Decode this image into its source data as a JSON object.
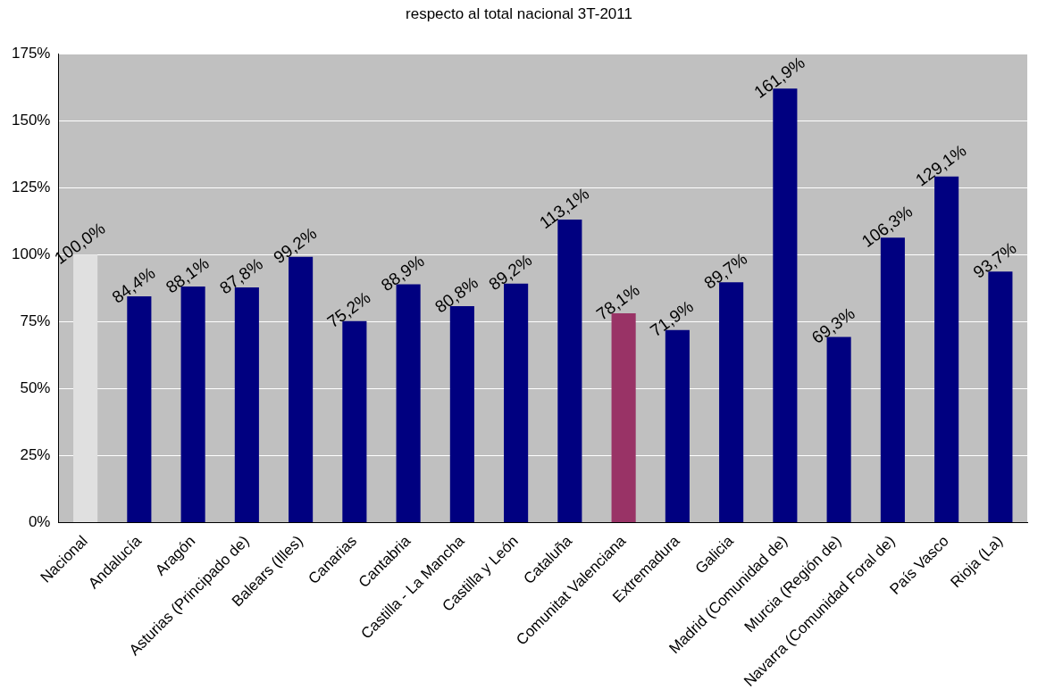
{
  "chart_data": {
    "type": "bar",
    "title": "respecto al total nacional 3T-2011",
    "categories": [
      "Nacional",
      "Andalucía",
      "Aragón",
      "Asturias (Principado de)",
      "Balears (Illes)",
      "Canarias",
      "Cantabria",
      "Castilla - La Mancha",
      "Castilla y León",
      "Cataluña",
      "Comunitat Valenciana",
      "Extremadura",
      "Galicia",
      "Madrid (Comunidad de)",
      "Murcia (Región de)",
      "Navarra (Comunidad Foral de)",
      "País Vasco",
      "Rioja (La)"
    ],
    "values": [
      100.0,
      84.4,
      88.1,
      87.8,
      99.2,
      75.2,
      88.9,
      80.8,
      89.2,
      113.1,
      78.1,
      71.9,
      89.7,
      161.9,
      69.3,
      106.3,
      129.1,
      93.7
    ],
    "value_labels": [
      "100,0%",
      "84,4%",
      "88,1%",
      "87,8%",
      "99,2%",
      "75,2%",
      "88,9%",
      "80,8%",
      "89,2%",
      "113,1%",
      "78,1%",
      "71,9%",
      "89,7%",
      "161,9%",
      "69,3%",
      "106,3%",
      "129,1%",
      "93,7%"
    ],
    "colors": [
      "#e0e0e0",
      "#000080",
      "#000080",
      "#000080",
      "#000080",
      "#000080",
      "#000080",
      "#000080",
      "#000080",
      "#000080",
      "#993366",
      "#000080",
      "#000080",
      "#000080",
      "#000080",
      "#000080",
      "#000080",
      "#000080"
    ],
    "ylim": [
      0,
      175
    ],
    "yticks": [
      {
        "value": 0,
        "label": "0%"
      },
      {
        "value": 25,
        "label": "25%"
      },
      {
        "value": 50,
        "label": "50%"
      },
      {
        "value": 75,
        "label": "75%"
      },
      {
        "value": 100,
        "label": "100%"
      },
      {
        "value": 125,
        "label": "125%"
      },
      {
        "value": 150,
        "label": "150%"
      },
      {
        "value": 175,
        "label": "175%"
      }
    ],
    "grid": "y",
    "legend": false
  }
}
